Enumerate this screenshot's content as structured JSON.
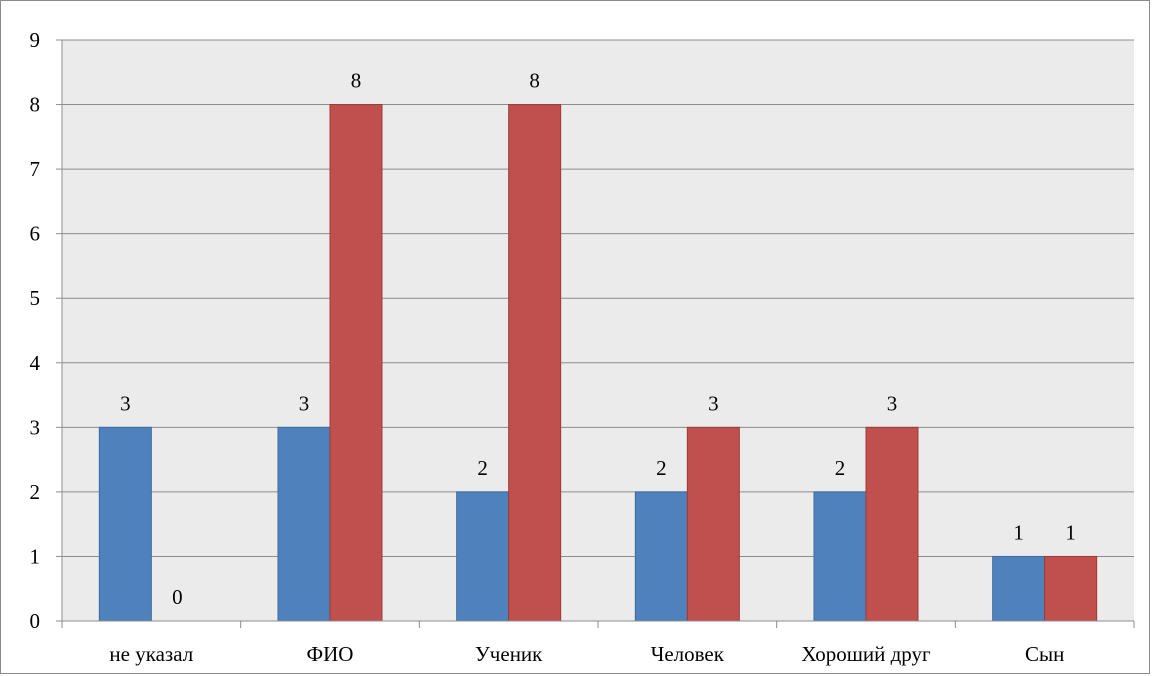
{
  "chart_data": {
    "type": "bar",
    "categories": [
      "не указал",
      "ФИО",
      "Ученик",
      "Человек",
      "Хороший друг",
      "Сын"
    ],
    "series": [
      {
        "values": [
          3,
          3,
          2,
          2,
          2,
          1
        ],
        "color": "#4f81bd"
      },
      {
        "values": [
          0,
          8,
          8,
          3,
          3,
          1
        ],
        "color": "#c0504d"
      }
    ],
    "ylim": [
      0,
      9
    ],
    "yticks": [
      "0",
      "1",
      "2",
      "3",
      "4",
      "5",
      "6",
      "7",
      "8",
      "9"
    ],
    "grid": true,
    "legend": "none",
    "plot_background": "#ebebeb",
    "grid_color": "#8c8c8c"
  }
}
